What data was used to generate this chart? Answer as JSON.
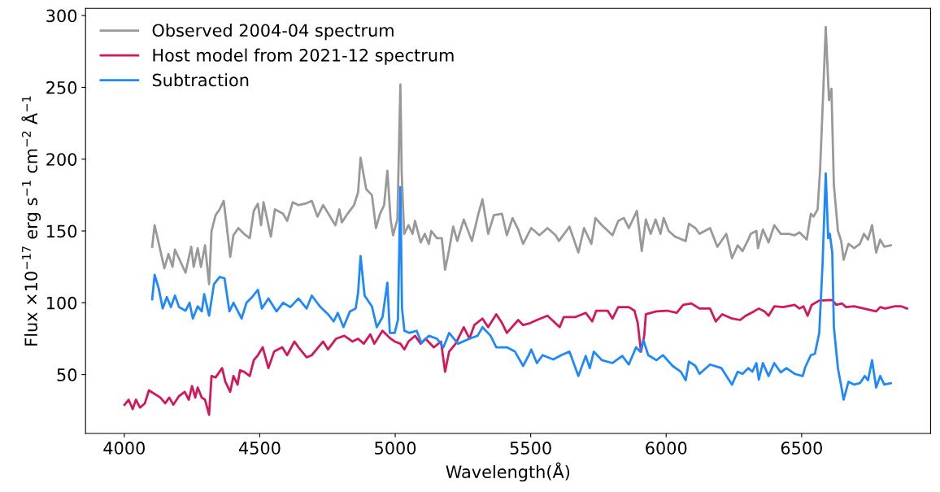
{
  "chart_data": {
    "type": "line",
    "xlabel": "Wavelength(Å)",
    "ylabel": "Flux ×10$^{−17}$ erg s$^{−1}$ cm$^{−2}$ Å$^{−1}$",
    "xlim": [
      3857,
      6976
    ],
    "xticks": [
      4000,
      4500,
      5000,
      5500,
      6000,
      6500
    ],
    "ylim": [
      9,
      305
    ],
    "yticks": [
      50,
      100,
      150,
      200,
      250,
      300
    ],
    "grid": false,
    "legend": "top left",
    "marker": "none",
    "line_style": "solid",
    "series": [
      {
        "name": "Observed 2004-04 spectrum",
        "color": "#999999",
        "x": [
          4103,
          4112,
          4148,
          4163,
          4178,
          4187,
          4226,
          4247,
          4256,
          4271,
          4283,
          4298,
          4313,
          4322,
          4337,
          4352,
          4367,
          4382,
          4391,
          4403,
          4421,
          4442,
          4463,
          4478,
          4493,
          4505,
          4514,
          4541,
          4556,
          4586,
          4601,
          4622,
          4643,
          4668,
          4692,
          4713,
          4734,
          4779,
          4794,
          4803,
          4824,
          4848,
          4863,
          4872,
          4893,
          4914,
          4929,
          4944,
          4959,
          4971,
          4983,
          4992,
          5008,
          5019,
          5024,
          5033,
          5049,
          5064,
          5073,
          5094,
          5109,
          5124,
          5133,
          5154,
          5172,
          5184,
          5199,
          5214,
          5229,
          5253,
          5283,
          5307,
          5322,
          5343,
          5364,
          5394,
          5412,
          5433,
          5454,
          5472,
          5502,
          5532,
          5562,
          5592,
          5604,
          5643,
          5676,
          5697,
          5724,
          5739,
          5763,
          5802,
          5823,
          5844,
          5862,
          5892,
          5910,
          5925,
          5943,
          5961,
          5979,
          5991,
          6009,
          6033,
          6072,
          6084,
          6108,
          6123,
          6162,
          6189,
          6222,
          6243,
          6264,
          6282,
          6303,
          6312,
          6333,
          6339,
          6357,
          6378,
          6399,
          6423,
          6453,
          6474,
          6492,
          6519,
          6534,
          6544,
          6559,
          6568,
          6580,
          6589,
          6601,
          6610,
          6619,
          6634,
          6646,
          6655,
          6673,
          6694,
          6715,
          6730,
          6745,
          6760,
          6775,
          6790,
          6805,
          6829
        ],
        "values": [
          139,
          154,
          124,
          134,
          125,
          137,
          121,
          139,
          125,
          138,
          125,
          140,
          113,
          150,
          161,
          165,
          171,
          147,
          132,
          147,
          152,
          148,
          145,
          164,
          169,
          154,
          170,
          146,
          165,
          162,
          157,
          170,
          168,
          169,
          171,
          160,
          168,
          154,
          165,
          156,
          162,
          168,
          177,
          201,
          179,
          175,
          152,
          162,
          168,
          192,
          158,
          147,
          158,
          252,
          190,
          148,
          154,
          148,
          157,
          142,
          148,
          141,
          150,
          145,
          145,
          123,
          137,
          153,
          143,
          158,
          143,
          162,
          172,
          148,
          161,
          162,
          147,
          159,
          151,
          141,
          152,
          147,
          152,
          147,
          143,
          153,
          135,
          152,
          141,
          159,
          154,
          147,
          157,
          159,
          152,
          164,
          136,
          158,
          148,
          158,
          148,
          159,
          150,
          146,
          143,
          155,
          152,
          148,
          152,
          139,
          148,
          131,
          140,
          136,
          144,
          148,
          150,
          138,
          151,
          142,
          154,
          148,
          148,
          147,
          149,
          144,
          162,
          160,
          165,
          192,
          248,
          292,
          241,
          249,
          182,
          150,
          143,
          130,
          141,
          138,
          141,
          148,
          144,
          154,
          135,
          144,
          139,
          140
        ]
      },
      {
        "name": "Host model from 2021-12 spectrum",
        "color": "#d6165a",
        "x": [
          4001,
          4016,
          4031,
          4043,
          4058,
          4076,
          4091,
          4133,
          4151,
          4166,
          4181,
          4202,
          4223,
          4238,
          4250,
          4262,
          4271,
          4286,
          4298,
          4313,
          4322,
          4337,
          4361,
          4373,
          4391,
          4403,
          4418,
          4427,
          4442,
          4463,
          4478,
          4493,
          4511,
          4532,
          4553,
          4583,
          4601,
          4628,
          4643,
          4673,
          4692,
          4734,
          4752,
          4782,
          4812,
          4842,
          4863,
          4884,
          4908,
          4923,
          4953,
          4983,
          4998,
          5019,
          5034,
          5049,
          5073,
          5094,
          5112,
          5142,
          5169,
          5184,
          5199,
          5223,
          5253,
          5274,
          5292,
          5322,
          5343,
          5373,
          5394,
          5412,
          5454,
          5472,
          5493,
          5523,
          5562,
          5607,
          5622,
          5664,
          5703,
          5727,
          5742,
          5784,
          5802,
          5823,
          5862,
          5883,
          5895,
          5907,
          5919,
          5925,
          5964,
          6003,
          6039,
          6063,
          6093,
          6123,
          6162,
          6183,
          6207,
          6243,
          6273,
          6294,
          6324,
          6342,
          6363,
          6378,
          6399,
          6432,
          6474,
          6492,
          6507,
          6522,
          6537,
          6565,
          6613,
          6628,
          6649,
          6664,
          6694,
          6775,
          6790,
          6808,
          6844,
          6868,
          6889
        ],
        "values": [
          29,
          32.5,
          26,
          32.5,
          27,
          30,
          39,
          34,
          30,
          34,
          29,
          35,
          38,
          32.5,
          42,
          34,
          41,
          34,
          32.5,
          22,
          49,
          48,
          54.5,
          45,
          38,
          49,
          43,
          53,
          52,
          49,
          60,
          63.5,
          69,
          54.5,
          66,
          69,
          63.5,
          73,
          69,
          62,
          63.5,
          73,
          67.5,
          75,
          77,
          73,
          75,
          71.5,
          78,
          71.5,
          80.5,
          75,
          73,
          71.5,
          67.5,
          73,
          77,
          71.5,
          75,
          69,
          73,
          52,
          66,
          71.5,
          83,
          75,
          84.5,
          89,
          83,
          92,
          86,
          79,
          88,
          84.5,
          85.5,
          88,
          91,
          83,
          90,
          90,
          93,
          87,
          94.5,
          94.5,
          89,
          97,
          97,
          94.5,
          86,
          66,
          77,
          92,
          94,
          94.5,
          93,
          98.5,
          99.5,
          96,
          96,
          87,
          92,
          89,
          88,
          91,
          94,
          96,
          94,
          91,
          97.5,
          97,
          98.5,
          96,
          97.5,
          91,
          98.5,
          101.5,
          102,
          98.5,
          99.5,
          97,
          97.5,
          94,
          97,
          96,
          97.5,
          97.5,
          96
        ]
      },
      {
        "name": "Subtraction",
        "color": "#1e88ff",
        "x": [
          4103,
          4112,
          4127,
          4142,
          4157,
          4172,
          4187,
          4202,
          4226,
          4241,
          4253,
          4271,
          4286,
          4295,
          4313,
          4331,
          4352,
          4370,
          4388,
          4403,
          4433,
          4451,
          4472,
          4493,
          4508,
          4532,
          4562,
          4586,
          4613,
          4643,
          4673,
          4692,
          4722,
          4752,
          4773,
          4788,
          4809,
          4833,
          4854,
          4863,
          4872,
          4887,
          4914,
          4932,
          4953,
          4971,
          4980,
          4998,
          5010,
          5019,
          5025,
          5034,
          5052,
          5079,
          5097,
          5124,
          5154,
          5178,
          5199,
          5232,
          5274,
          5304,
          5322,
          5352,
          5373,
          5412,
          5442,
          5472,
          5493,
          5502,
          5523,
          5544,
          5583,
          5613,
          5643,
          5676,
          5703,
          5718,
          5733,
          5763,
          5802,
          5838,
          5862,
          5889,
          5904,
          5916,
          5934,
          5964,
          5988,
          6024,
          6054,
          6072,
          6084,
          6108,
          6123,
          6162,
          6204,
          6243,
          6264,
          6282,
          6303,
          6318,
          6333,
          6342,
          6357,
          6378,
          6399,
          6423,
          6444,
          6474,
          6504,
          6513,
          6534,
          6549,
          6565,
          6577,
          6589,
          6598,
          6604,
          6613,
          6619,
          6634,
          6649,
          6655,
          6673,
          6694,
          6715,
          6733,
          6745,
          6760,
          6775,
          6790,
          6805,
          6829
        ],
        "values": [
          102.5,
          119.5,
          110,
          96,
          104,
          97,
          105,
          97,
          94.5,
          100,
          89,
          97.5,
          94,
          106,
          91,
          113,
          118,
          117,
          94,
          100,
          89,
          100,
          104,
          109,
          96,
          103,
          94,
          100,
          97,
          103,
          96,
          105,
          97.5,
          92,
          87,
          93,
          83,
          94,
          96,
          107,
          132.5,
          105,
          97.5,
          83,
          90,
          114,
          79,
          79,
          88,
          180.5,
          96,
          80.5,
          79,
          80.5,
          72,
          77,
          75,
          69,
          79,
          71.5,
          75,
          77,
          83,
          77,
          69,
          69,
          66,
          56,
          63.5,
          67.5,
          58,
          63.5,
          60.5,
          63.5,
          66,
          49,
          63,
          54.5,
          66,
          60,
          58,
          63,
          57,
          69,
          66,
          74,
          63.5,
          60,
          63.5,
          56,
          52,
          46,
          59,
          56,
          50.5,
          57,
          54.5,
          43,
          52,
          50.5,
          54.5,
          52,
          58,
          46.5,
          58,
          49,
          58,
          51.5,
          54.5,
          50.5,
          49,
          55,
          63.5,
          64.5,
          79,
          126,
          190,
          145,
          148,
          135,
          83,
          54.5,
          39,
          32.5,
          45,
          43,
          44,
          49,
          46,
          60,
          41,
          49,
          43,
          44
        ]
      }
    ]
  }
}
